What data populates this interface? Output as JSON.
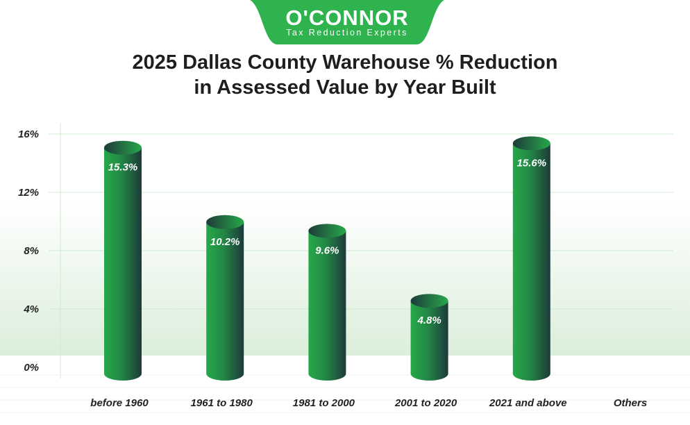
{
  "logo": {
    "name": "O'CONNOR",
    "tagline": "Tax Reduction Experts",
    "color": "#2eb34f"
  },
  "title_line1": "2025 Dallas County Warehouse % Reduction",
  "title_line2": "in Assessed Value by Year Built",
  "chart_data": {
    "type": "bar",
    "title": "2025 Dallas County Warehouse % Reduction in Assessed Value by Year Built",
    "categories": [
      "before 1960",
      "1961 to 1980",
      "1981 to 2000",
      "2001 to 2020",
      "2021 and above",
      "Others"
    ],
    "values": [
      15.3,
      10.2,
      9.6,
      4.8,
      15.6,
      null
    ],
    "data_labels": [
      "15.3%",
      "10.2%",
      "9.6%",
      "4.8%",
      "15.6%",
      ""
    ],
    "ylim": [
      0,
      16
    ],
    "yticks": [
      0,
      4,
      8,
      12,
      16
    ],
    "ytick_labels": [
      "0%",
      "4%",
      "8%",
      "12%",
      "16%"
    ],
    "xlabel": "",
    "ylabel": "",
    "grid": true,
    "bar_style": "3d-cylinder",
    "colors": {
      "bar_light": "#27a84a",
      "bar_dark": "#1e3a3a",
      "grid": "#cfe8d2"
    }
  }
}
